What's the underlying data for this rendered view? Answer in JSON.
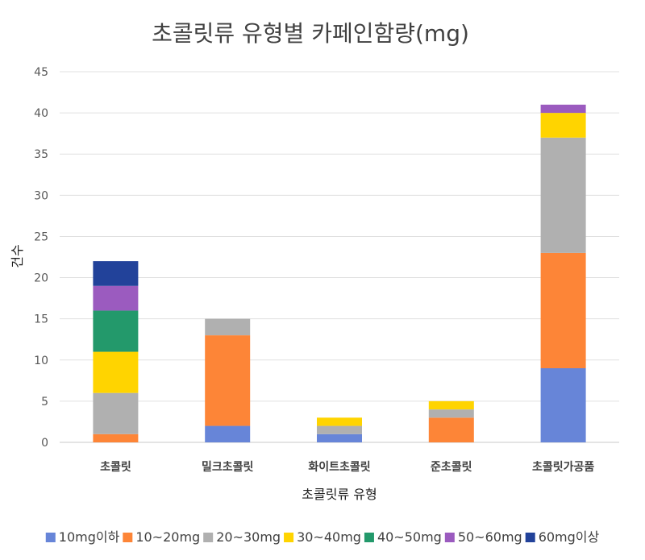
{
  "chart_data": {
    "type": "bar",
    "stacked": true,
    "title": "초콜릿류 유형별 카페인함량(mg)",
    "xlabel": "초콜릿류 유형",
    "ylabel": "건수",
    "ylim": [
      0,
      45
    ],
    "yticks": [
      0,
      5,
      10,
      15,
      20,
      25,
      30,
      35,
      40,
      45
    ],
    "grid": true,
    "legend_position": "bottom",
    "categories": [
      "초콜릿",
      "밀크초콜릿",
      "화이트초콜릿",
      "준초콜릿",
      "초콜릿가공품"
    ],
    "series": [
      {
        "name": "10mg이하",
        "color": "#6785d8",
        "values": [
          0,
          2,
          1,
          0,
          9
        ]
      },
      {
        "name": "10~20mg",
        "color": "#fd8537",
        "values": [
          1,
          11,
          0,
          3,
          14
        ]
      },
      {
        "name": "20~30mg",
        "color": "#b0b0b0",
        "values": [
          5,
          2,
          1,
          1,
          14
        ]
      },
      {
        "name": "30~40mg",
        "color": "#ffd400",
        "values": [
          5,
          0,
          1,
          1,
          3
        ]
      },
      {
        "name": "40~50mg",
        "color": "#23996b",
        "values": [
          5,
          0,
          0,
          0,
          0
        ]
      },
      {
        "name": "50~60mg",
        "color": "#9b5bbf",
        "values": [
          3,
          0,
          0,
          0,
          1
        ]
      },
      {
        "name": "60mg이상",
        "color": "#22429a",
        "values": [
          3,
          0,
          0,
          0,
          0
        ]
      }
    ]
  }
}
